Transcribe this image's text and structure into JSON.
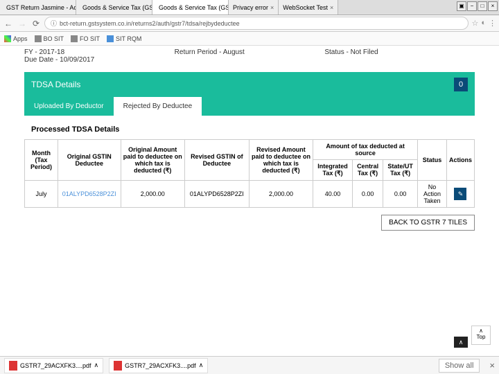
{
  "browser": {
    "tabs": [
      {
        "label": "GST Return Jasmine - Ac"
      },
      {
        "label": "Goods & Service Tax (GS"
      },
      {
        "label": "Goods & Service Tax (GS",
        "active": true
      },
      {
        "label": "Privacy error"
      },
      {
        "label": "WebSocket Test"
      }
    ],
    "url": "bct-return.gstsystem.co.in/returns2/auth/gstr7/tdsa/rejbydeductee",
    "bookmarks": [
      {
        "label": "Apps"
      },
      {
        "label": "BO SIT"
      },
      {
        "label": "FO SIT"
      },
      {
        "label": "SIT RQM"
      }
    ]
  },
  "topinfo": {
    "fy": "FY - 2017-18",
    "period": "Return Period - August",
    "status": "Status - Not Filed",
    "due": "Due Date - 10/09/2017"
  },
  "panel": {
    "title": "TDSA Details",
    "badge": "0",
    "tab1": "Uploaded By Deductor",
    "tab2": "Rejected By Deductee",
    "section": "Processed TDSA Details"
  },
  "headers": {
    "month": "Month (Tax Period)",
    "gstin": "Original GSTIN Deductee",
    "origAmt": "Original Amount paid to deductee on which tax is deducted (₹)",
    "revGstin": "Revised GSTIN of Deductee",
    "revAmt": "Revised Amount paid to deductee on which tax is deducted (₹)",
    "taxGroup": "Amount of tax deducted at source",
    "igst": "Integrated Tax (₹)",
    "cgst": "Central Tax (₹)",
    "sgst": "State/UT Tax (₹)",
    "status": "Status",
    "actions": "Actions"
  },
  "row": {
    "month": "July",
    "gstin": "01ALYPD6528P2ZI",
    "origAmt": "2,000.00",
    "revGstin": "01ALYPD6528P2ZI",
    "revAmt": "2,000.00",
    "igst": "40.00",
    "cgst": "0.00",
    "sgst": "0.00",
    "status": "No Action Taken",
    "edit": "✎"
  },
  "back": "BACK TO GSTR 7 TILES",
  "scrolltop": "Top",
  "downloads": {
    "f1": "GSTR7_29ACXFK3....pdf",
    "f2": "GSTR7_29ACXFK3....pdf",
    "showall": "Show all"
  }
}
